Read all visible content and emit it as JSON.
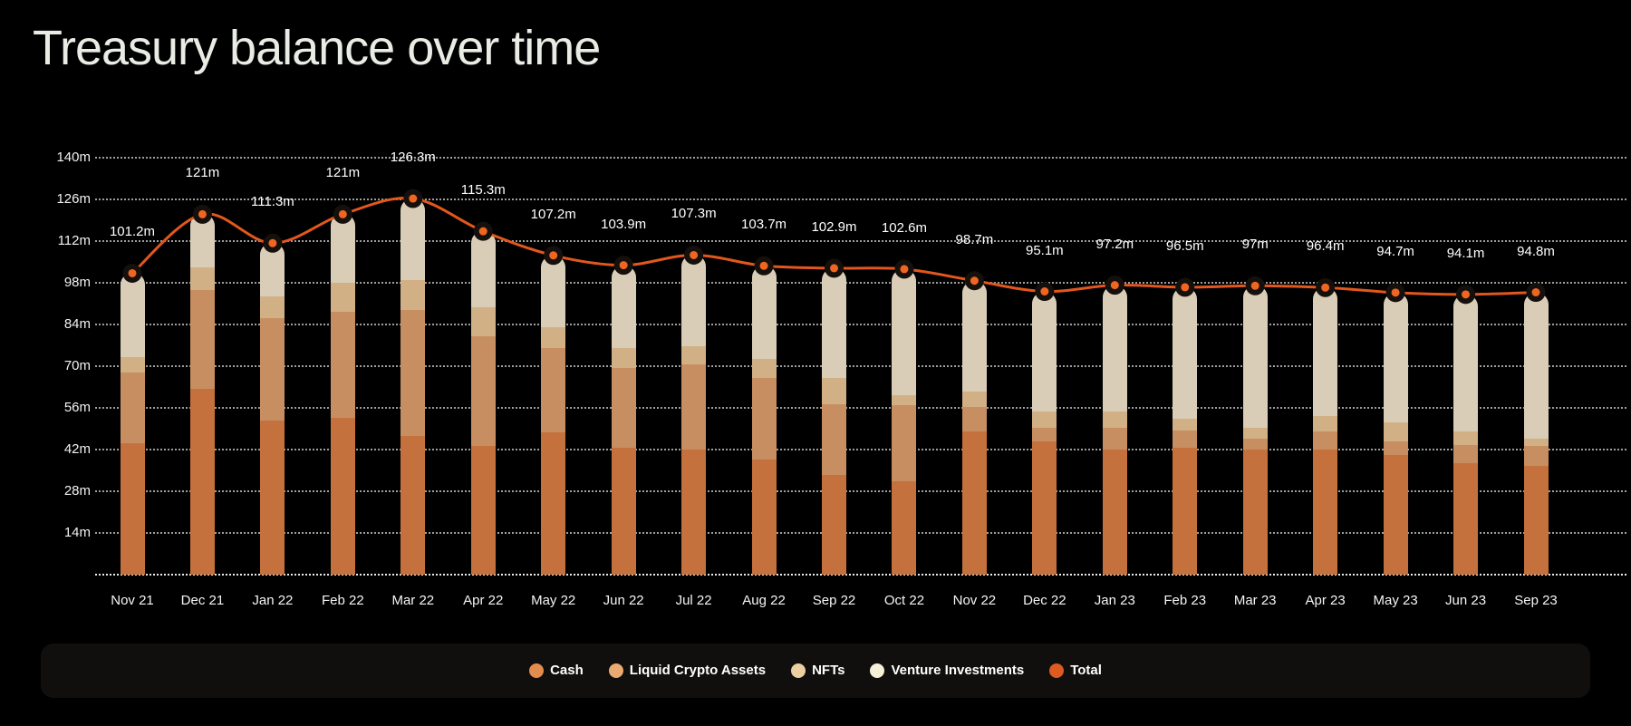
{
  "title": "Treasury balance over time",
  "colors": {
    "background": "#000000",
    "title_text": "#e9ece4",
    "axis_text": "#f2f2f2",
    "bar_cash": "#c4713d",
    "bar_liquid_crypto": "#c78f61",
    "bar_nfts": "#d2b086",
    "bar_venture": "#d9cdb7",
    "total_line": "#e2571d",
    "total_dot_center": "#f06621",
    "total_dot_ring": "#15100b",
    "legend_background": "#100f0e"
  },
  "y_axis": {
    "tick_labels": [
      "140m",
      "126m",
      "112m",
      "98m",
      "84m",
      "70m",
      "56m",
      "42m",
      "28m",
      "14m"
    ],
    "tick_values": [
      140,
      126,
      112,
      98,
      84,
      70,
      56,
      42,
      28,
      14
    ]
  },
  "legend": {
    "items": [
      {
        "label": "Cash",
        "color": "#e28d4d"
      },
      {
        "label": "Liquid Crypto Assets",
        "color": "#ebaa70"
      },
      {
        "label": "NFTs",
        "color": "#edd0a1"
      },
      {
        "label": "Venture Investments",
        "color": "#f7f0d9"
      },
      {
        "label": "Total",
        "color": "#dd5a20"
      }
    ]
  },
  "chart_data": {
    "type": "bar",
    "stacked": true,
    "title": "Treasury balance over time",
    "xlabel": "",
    "ylabel": "",
    "ylim": [
      0,
      140
    ],
    "grid": "horizontal dotted",
    "legend_position": "bottom",
    "categories": [
      "Nov 21",
      "Dec 21",
      "Jan 22",
      "Feb 22",
      "Mar 22",
      "Apr 22",
      "May 22",
      "Jun 22",
      "Jul 22",
      "Aug 22",
      "Sep 22",
      "Oct 22",
      "Nov 22",
      "Dec 22",
      "Jan 23",
      "Feb 23",
      "Mar 23",
      "Apr 23",
      "May 23",
      "Jun 23",
      "Sep 23"
    ],
    "series": [
      {
        "name": "Cash",
        "color": "#c4713d",
        "values": [
          44.0,
          62.3,
          51.7,
          52.6,
          46.5,
          43.2,
          47.7,
          42.6,
          42.0,
          38.6,
          33.5,
          31.3,
          48.1,
          44.7,
          42.0,
          42.5,
          42.0,
          42.0,
          40.2,
          37.4,
          36.5
        ]
      },
      {
        "name": "Liquid Crypto Assets",
        "color": "#c78f61",
        "values": [
          24.0,
          33.4,
          34.3,
          35.6,
          42.3,
          36.8,
          28.3,
          26.7,
          28.5,
          27.4,
          23.7,
          25.6,
          8.2,
          4.6,
          7.2,
          5.8,
          3.6,
          6.1,
          4.5,
          6.1,
          6.7
        ]
      },
      {
        "name": "NFTs",
        "color": "#d2b086",
        "values": [
          5.0,
          7.6,
          7.3,
          9.8,
          10.0,
          9.7,
          7.0,
          6.7,
          6.1,
          6.4,
          8.8,
          3.3,
          5.1,
          5.5,
          5.6,
          4.0,
          3.6,
          5.1,
          6.4,
          4.6,
          2.6
        ]
      },
      {
        "name": "Venture Investments",
        "color": "#d9cdb7",
        "values": [
          28.2,
          17.7,
          18.0,
          23.0,
          27.5,
          25.6,
          24.2,
          27.9,
          30.7,
          31.3,
          36.9,
          42.4,
          37.3,
          40.3,
          42.4,
          44.2,
          47.8,
          43.2,
          43.6,
          46.0,
          49.0
        ]
      }
    ],
    "overlay_line": {
      "name": "Total",
      "color": "#e2571d",
      "values": [
        101.2,
        121,
        111.3,
        121,
        126.3,
        115.3,
        107.2,
        103.9,
        107.3,
        103.7,
        102.9,
        102.6,
        98.7,
        95.1,
        97.2,
        96.5,
        97,
        96.4,
        94.7,
        94.1,
        94.8
      ],
      "labels": [
        "101.2m",
        "121m",
        "111.3m",
        "121m",
        "126.3m",
        "115.3m",
        "107.2m",
        "103.9m",
        "107.3m",
        "103.7m",
        "102.9m",
        "102.6m",
        "98.7m",
        "95.1m",
        "97.2m",
        "96.5m",
        "97m",
        "96.4m",
        "94.7m",
        "94.1m",
        "94.8m"
      ]
    }
  }
}
